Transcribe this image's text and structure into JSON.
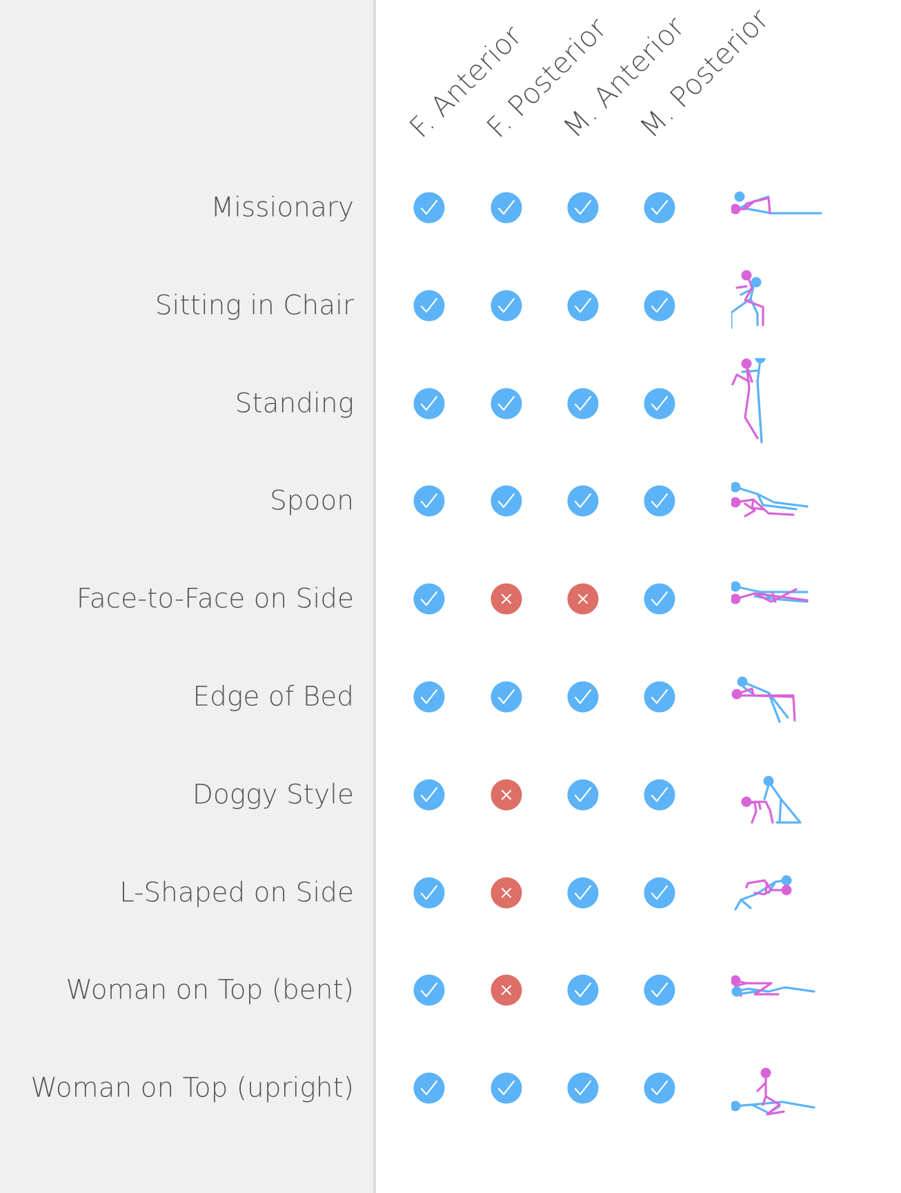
{
  "colors": {
    "check": "#5cb3f7",
    "cross": "#dd6f66",
    "man": "#5cb3f7",
    "woman": "#d964d9",
    "panel": "#f0f0f0",
    "text": "#555555"
  },
  "columns": [
    {
      "key": "f_anterior",
      "label": "F. Anterior"
    },
    {
      "key": "f_posterior",
      "label": "F. Posterior"
    },
    {
      "key": "m_anterior",
      "label": "M. Anterior"
    },
    {
      "key": "m_posterior",
      "label": "M. Posterior"
    }
  ],
  "rows": [
    {
      "label": "Missionary",
      "values": [
        true,
        true,
        true,
        true
      ],
      "icon": "missionary-figure-icon"
    },
    {
      "label": "Sitting in Chair",
      "values": [
        true,
        true,
        true,
        true
      ],
      "icon": "sitting-in-chair-figure-icon"
    },
    {
      "label": "Standing",
      "values": [
        true,
        true,
        true,
        true
      ],
      "icon": "standing-figure-icon"
    },
    {
      "label": "Spoon",
      "values": [
        true,
        true,
        true,
        true
      ],
      "icon": "spoon-figure-icon"
    },
    {
      "label": "Face-to-Face on Side",
      "values": [
        true,
        false,
        false,
        true
      ],
      "icon": "face-to-face-on-side-figure-icon"
    },
    {
      "label": "Edge of Bed",
      "values": [
        true,
        true,
        true,
        true
      ],
      "icon": "edge-of-bed-figure-icon"
    },
    {
      "label": "Doggy Style",
      "values": [
        true,
        false,
        true,
        true
      ],
      "icon": "doggy-style-figure-icon"
    },
    {
      "label": "L-Shaped on Side",
      "values": [
        true,
        false,
        true,
        true
      ],
      "icon": "l-shaped-on-side-figure-icon"
    },
    {
      "label": "Woman on Top (bent)",
      "values": [
        true,
        false,
        true,
        true
      ],
      "icon": "woman-on-top-bent-figure-icon"
    },
    {
      "label": "Woman on Top (upright)",
      "values": [
        true,
        true,
        true,
        true
      ],
      "icon": "woman-on-top-upright-figure-icon"
    }
  ]
}
